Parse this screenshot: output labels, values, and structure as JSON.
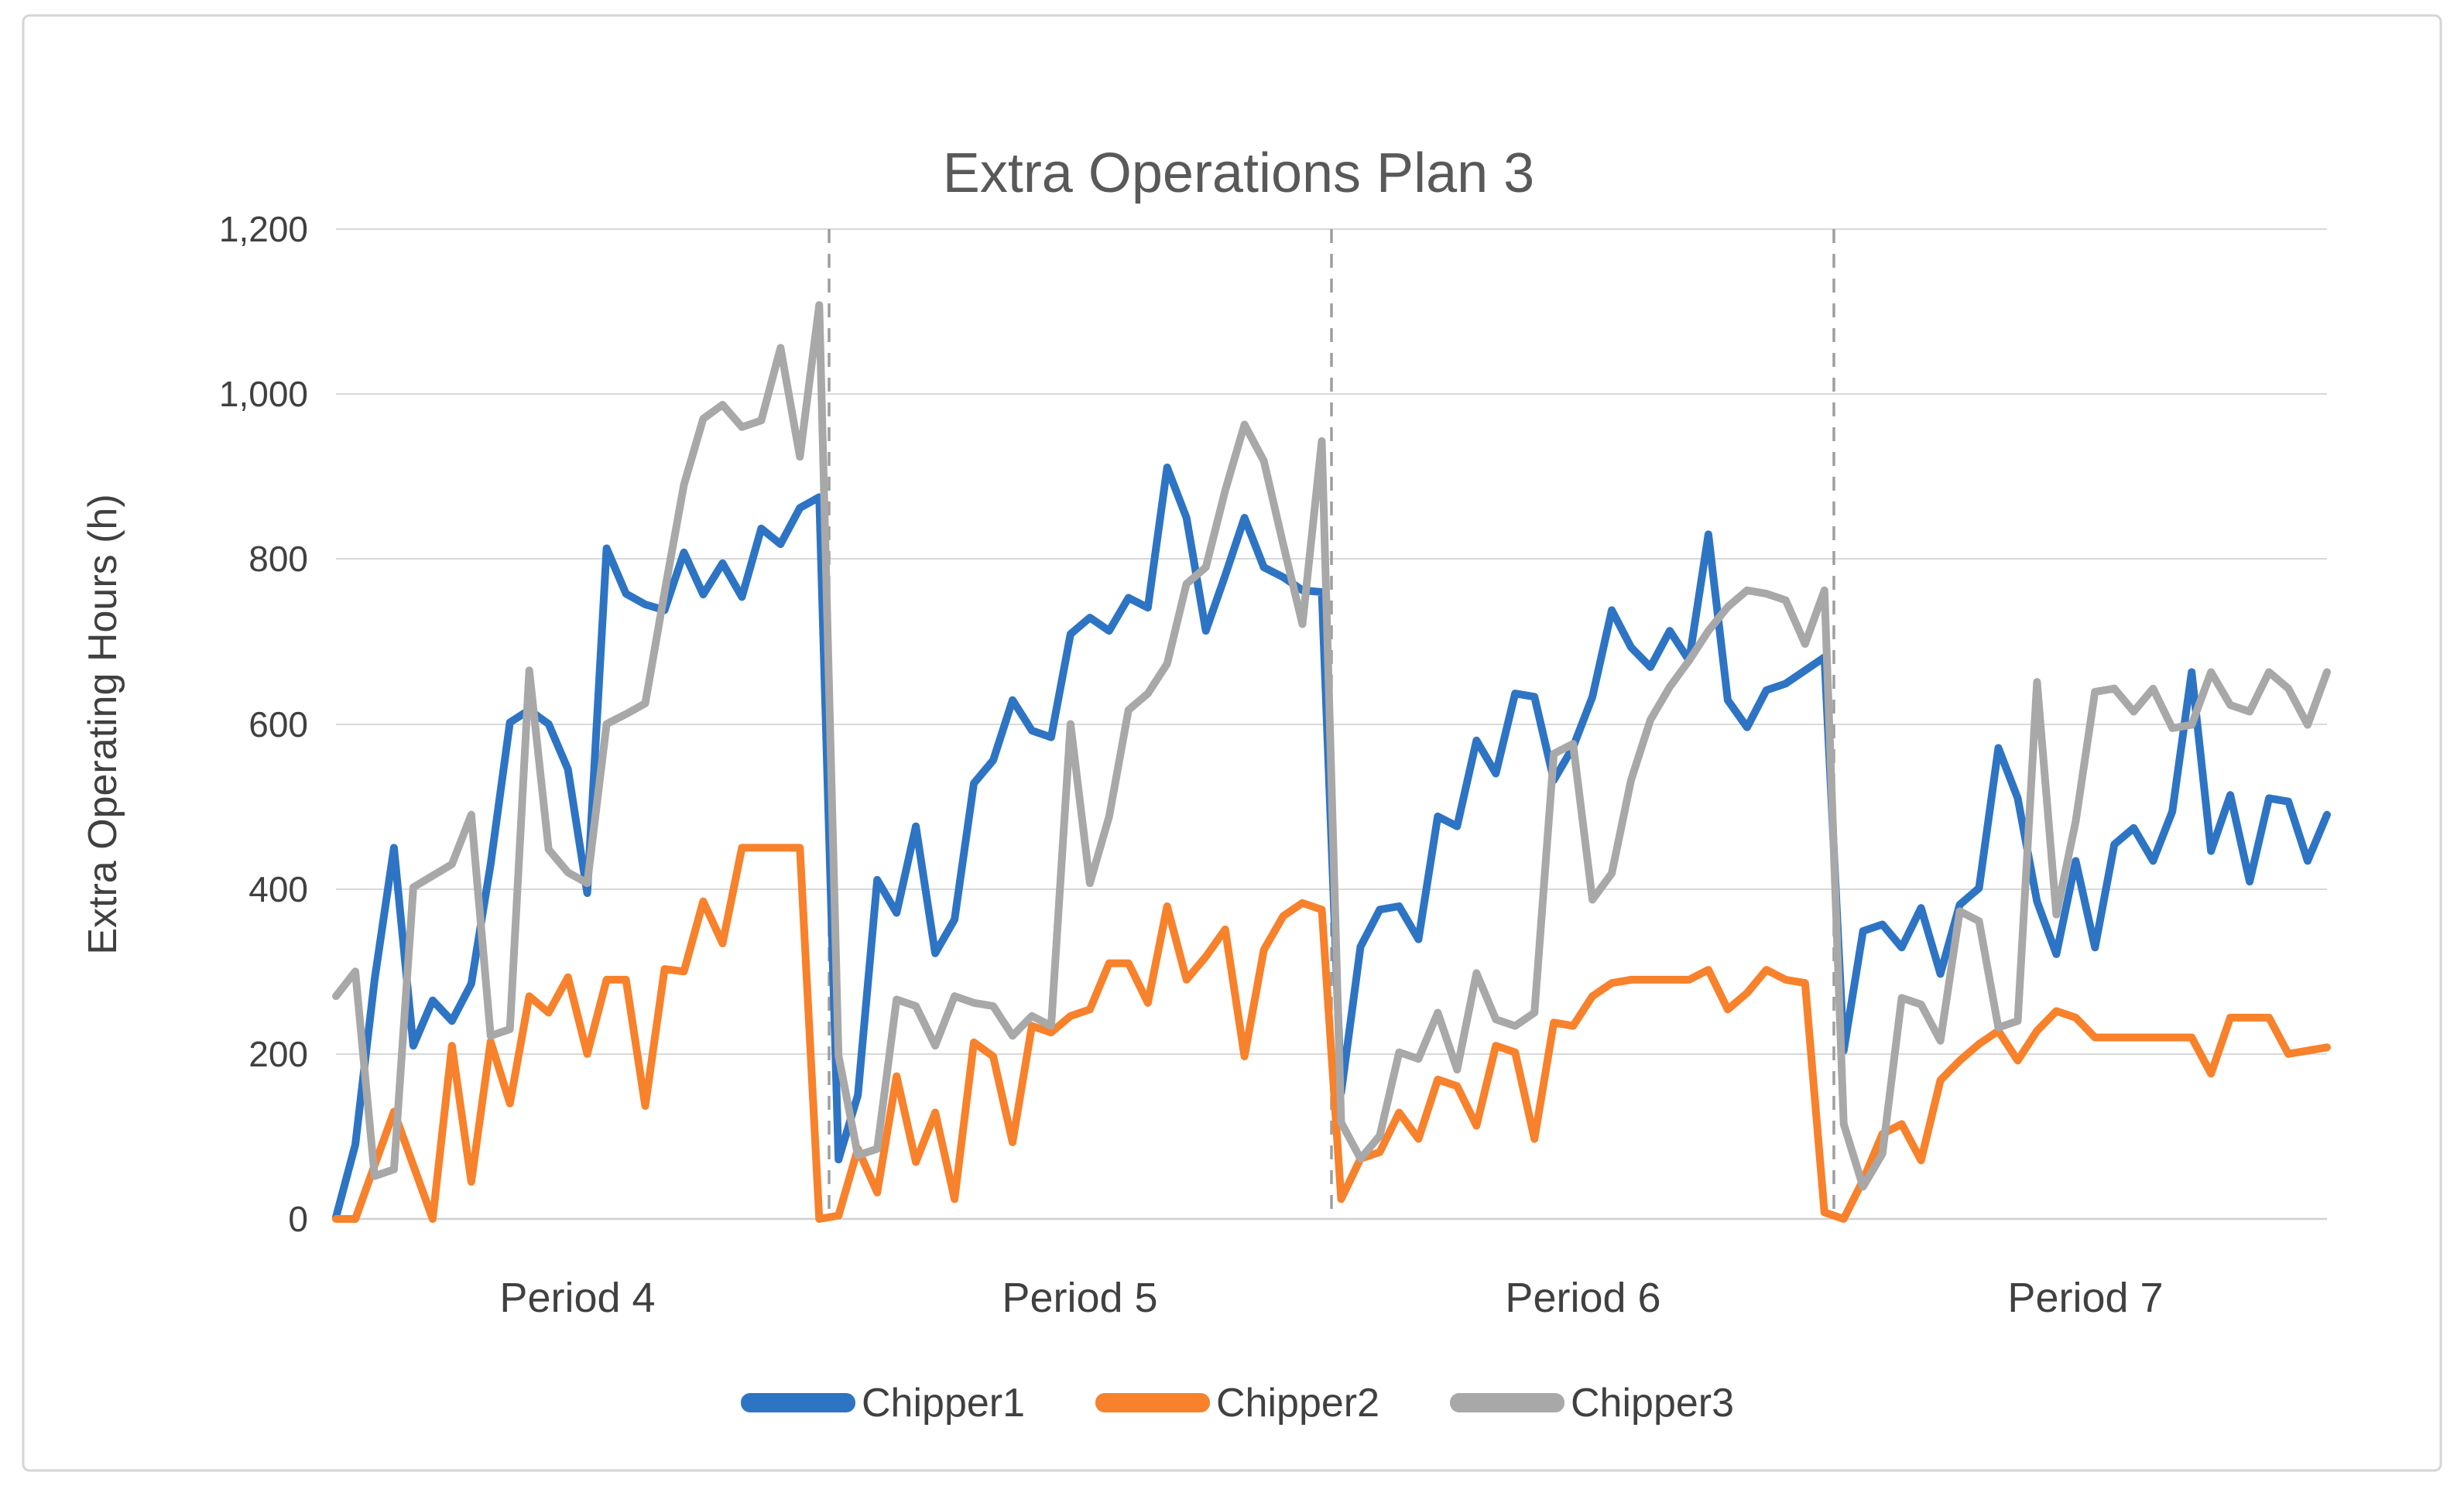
{
  "chart_data": {
    "type": "line",
    "title": "Extra Operations Plan 3",
    "xlabel": "",
    "ylabel": "Extra Operating Hours (h)",
    "ylim": [
      0,
      1200
    ],
    "ytick_interval": 200,
    "ytick_labels": [
      "1,200",
      "1,000",
      "800",
      "600",
      "400",
      "200",
      "0"
    ],
    "x_axis_labels": [
      "Period 4",
      "Period 5",
      "Period 6",
      "Period 7"
    ],
    "points_per_period": 26,
    "num_periods": 4,
    "grid": "horizontal-only",
    "period_separator_style": "vertical dashed lines between periods",
    "legend_position": "bottom-center",
    "series": [
      {
        "name": "Chipper1",
        "color": "#2E74C4",
        "values": [
          2,
          90,
          290,
          450,
          210,
          265,
          240,
          285,
          430,
          602,
          617,
          600,
          545,
          395,
          813,
          758,
          745,
          738,
          808,
          757,
          795,
          754,
          837,
          818,
          862,
          875,
          72,
          150,
          411,
          371,
          476,
          322,
          363,
          528,
          556,
          629,
          592,
          584,
          709,
          729,
          713,
          753,
          741,
          911,
          850,
          713,
          780,
          850,
          790,
          778,
          762,
          760,
          153,
          330,
          375,
          379,
          339,
          488,
          476,
          580,
          540,
          637,
          633,
          532,
          572,
          633,
          738,
          693,
          669,
          713,
          677,
          830,
          629,
          596,
          641,
          649,
          665,
          681,
          204,
          349,
          357,
          329,
          377,
          297,
          381,
          401,
          571,
          510,
          385,
          321,
          434,
          329,
          454,
          474,
          434,
          494,
          663,
          446,
          514,
          409,
          510,
          506,
          434,
          490
        ]
      },
      {
        "name": "Chipper2",
        "color": "#F8812B",
        "values": [
          0,
          0,
          65,
          130,
          65,
          0,
          210,
          45,
          215,
          140,
          270,
          250,
          293,
          200,
          290,
          290,
          137,
          303,
          300,
          385,
          334,
          450,
          450,
          450,
          450,
          0,
          4,
          85,
          32,
          173,
          69,
          129,
          24,
          214,
          197,
          93,
          234,
          226,
          246,
          254,
          310,
          310,
          262,
          379,
          290,
          318,
          351,
          197,
          326,
          367,
          383,
          375,
          24,
          73,
          81,
          129,
          97,
          169,
          161,
          113,
          210,
          202,
          97,
          238,
          234,
          270,
          286,
          290,
          290,
          290,
          290,
          302,
          254,
          274,
          302,
          290,
          286,
          8,
          0,
          47,
          103,
          115,
          71,
          168,
          192,
          212,
          228,
          192,
          228,
          252,
          244,
          220,
          220,
          220,
          220,
          220,
          220,
          176,
          244,
          244,
          244,
          200,
          204,
          208
        ]
      },
      {
        "name": "Chipper3",
        "color": "#A8A8A8",
        "values": [
          270,
          300,
          52,
          60,
          402,
          416,
          430,
          490,
          222,
          230,
          665,
          448,
          420,
          407,
          600,
          612,
          625,
          760,
          890,
          970,
          987,
          960,
          968,
          1056,
          924,
          1108,
          198,
          77,
          85,
          266,
          258,
          210,
          270,
          262,
          258,
          222,
          246,
          234,
          600,
          407,
          488,
          617,
          637,
          673,
          770,
          790,
          883,
          963,
          919,
          818,
          721,
          943,
          117,
          73,
          101,
          202,
          194,
          250,
          181,
          298,
          242,
          234,
          250,
          564,
          576,
          387,
          419,
          532,
          605,
          645,
          677,
          713,
          742,
          762,
          758,
          750,
          697,
          762,
          115,
          39,
          79,
          268,
          260,
          216,
          373,
          361,
          232,
          240,
          651,
          369,
          482,
          639,
          643,
          615,
          643,
          595,
          599,
          663,
          623,
          615,
          663,
          643,
          599,
          663
        ]
      }
    ]
  }
}
